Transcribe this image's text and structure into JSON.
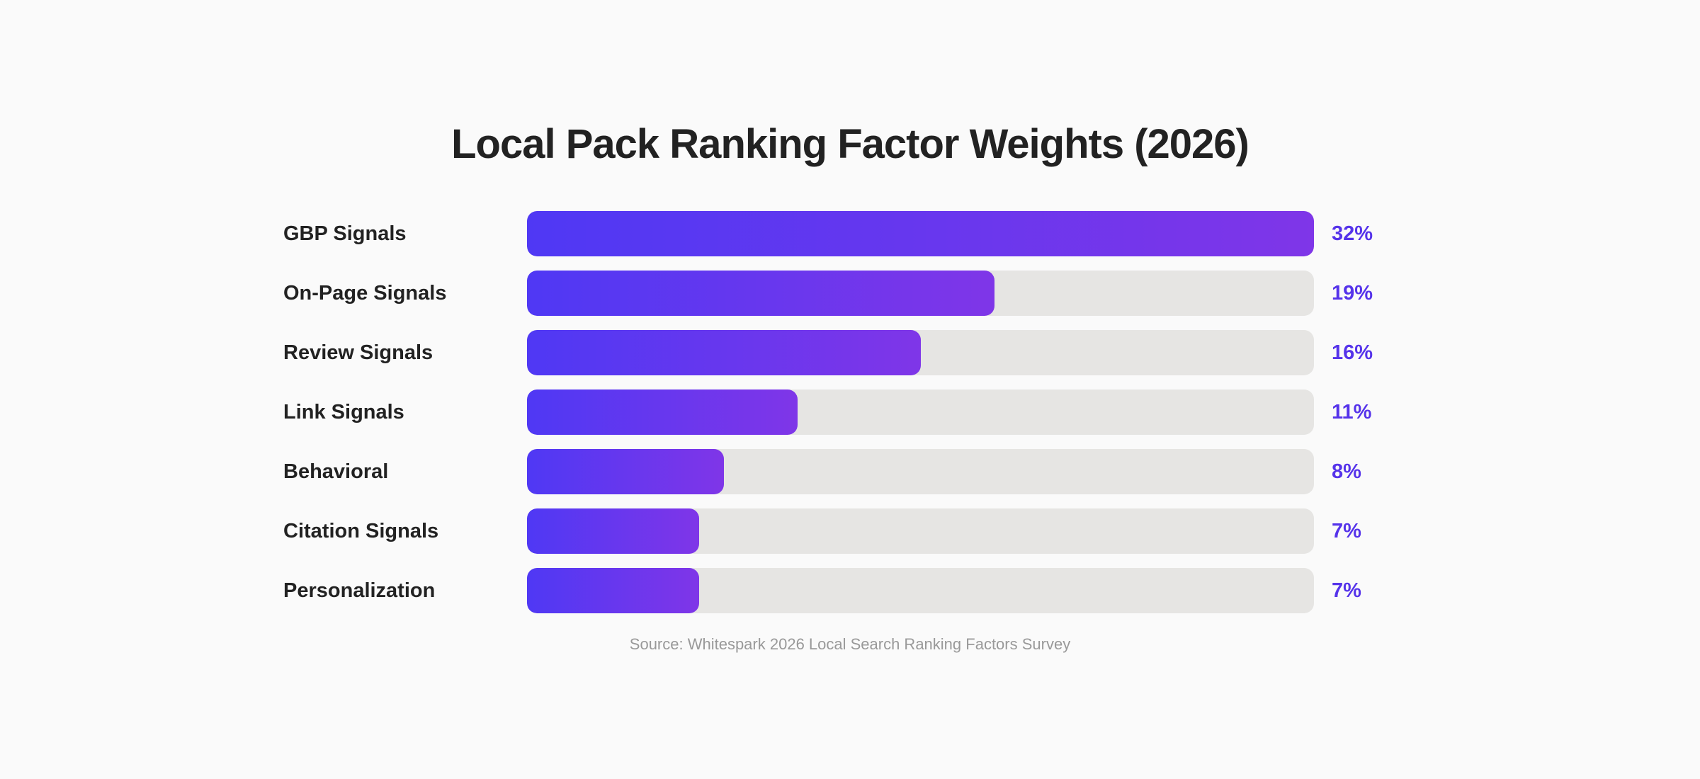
{
  "chart_data": {
    "type": "bar",
    "orientation": "horizontal",
    "title": "Local Pack Ranking Factor Weights (2026)",
    "categories": [
      "GBP Signals",
      "On-Page Signals",
      "Review Signals",
      "Link Signals",
      "Behavioral",
      "Citation Signals",
      "Personalization"
    ],
    "values": [
      32,
      19,
      16,
      11,
      8,
      7,
      7
    ],
    "value_labels": [
      "32%",
      "19%",
      "16%",
      "11%",
      "8%",
      "7%",
      "7%"
    ],
    "xlim": [
      0,
      32
    ],
    "unit": "%",
    "grid": false,
    "source": "Source: Whitespark 2026 Local Search Ranking Factors Survey",
    "colors": {
      "bar_start": "#4f38f4",
      "bar_end": "#7f36e8",
      "track": "#e6e5e3",
      "value_text": "#5533ea"
    }
  }
}
